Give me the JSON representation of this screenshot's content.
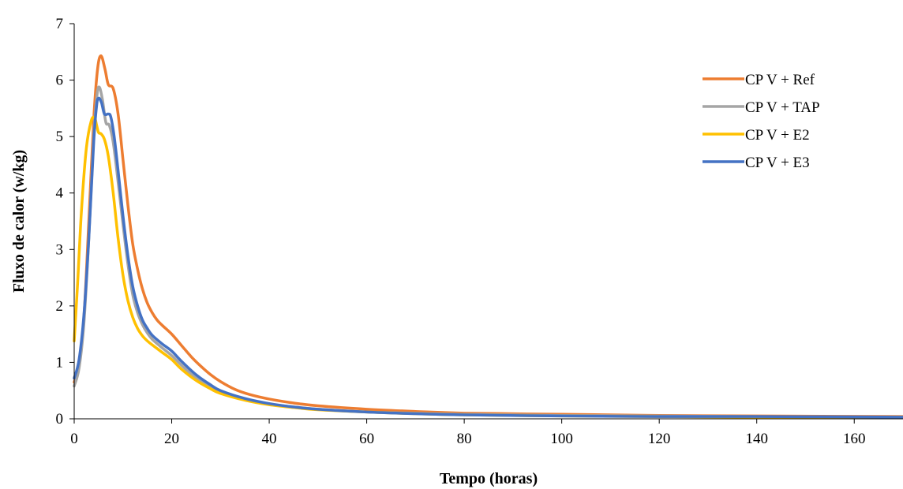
{
  "chart_data": {
    "type": "line",
    "title": "",
    "xlabel": "Tempo (horas)",
    "ylabel": "Fluxo de calor  (w/kg)",
    "xlim": [
      0,
      170
    ],
    "ylim": [
      0,
      7
    ],
    "x_ticks": [
      0,
      20,
      40,
      60,
      80,
      100,
      120,
      140,
      160
    ],
    "y_ticks": [
      0,
      1,
      2,
      3,
      4,
      5,
      6,
      7
    ],
    "grid": false,
    "legend_position": "top-right",
    "series": [
      {
        "name": "CP V + Ref",
        "color": "#ED7D31",
        "x": [
          0,
          1,
          2,
          3,
          4,
          4.8,
          5.5,
          6.3,
          7,
          8,
          9,
          10,
          11,
          12,
          13,
          14,
          15,
          16,
          17,
          18,
          20,
          22,
          24,
          26,
          28,
          30,
          33,
          36,
          40,
          45,
          50,
          60,
          70,
          80,
          100,
          120,
          140,
          170
        ],
        "y": [
          0.65,
          0.95,
          1.8,
          3.5,
          5.3,
          6.2,
          6.43,
          6.2,
          5.92,
          5.85,
          5.4,
          4.6,
          3.8,
          3.1,
          2.65,
          2.3,
          2.05,
          1.88,
          1.75,
          1.66,
          1.5,
          1.3,
          1.1,
          0.93,
          0.78,
          0.66,
          0.52,
          0.43,
          0.35,
          0.28,
          0.23,
          0.17,
          0.13,
          0.1,
          0.08,
          0.06,
          0.05,
          0.04
        ]
      },
      {
        "name": "CP V + TAP",
        "color": "#A5A5A5",
        "x": [
          0,
          1,
          2,
          3,
          4,
          4.7,
          5.2,
          5.8,
          6.5,
          7.2,
          8,
          9,
          10,
          11,
          12,
          13,
          14,
          15,
          16,
          18,
          20,
          22,
          25,
          28,
          30,
          35,
          40,
          45,
          50,
          60,
          70,
          80,
          100,
          120,
          140,
          170
        ],
        "y": [
          0.58,
          0.9,
          1.7,
          3.2,
          5.0,
          5.75,
          5.87,
          5.65,
          5.25,
          5.2,
          4.9,
          4.2,
          3.45,
          2.75,
          2.2,
          1.88,
          1.67,
          1.52,
          1.41,
          1.26,
          1.12,
          0.95,
          0.72,
          0.56,
          0.47,
          0.34,
          0.26,
          0.21,
          0.17,
          0.12,
          0.1,
          0.08,
          0.06,
          0.05,
          0.04,
          0.03
        ]
      },
      {
        "name": "CP V + E2",
        "color": "#FFC000",
        "x": [
          0,
          0.7,
          1.5,
          2.5,
          3.5,
          4.2,
          4.6,
          5.0,
          5.5,
          6.2,
          7,
          8,
          9,
          10,
          11,
          12,
          13,
          14,
          15,
          16,
          18,
          20,
          22,
          25,
          28,
          30,
          35,
          40,
          45,
          50,
          60,
          70,
          80,
          100,
          120,
          140,
          170
        ],
        "y": [
          1.38,
          2.4,
          3.7,
          4.8,
          5.28,
          5.33,
          5.2,
          5.07,
          5.05,
          4.95,
          4.65,
          4.0,
          3.2,
          2.55,
          2.1,
          1.8,
          1.6,
          1.47,
          1.38,
          1.31,
          1.18,
          1.05,
          0.88,
          0.68,
          0.53,
          0.45,
          0.33,
          0.25,
          0.2,
          0.16,
          0.12,
          0.09,
          0.07,
          0.05,
          0.04,
          0.03,
          0.03
        ]
      },
      {
        "name": "CP V + E3",
        "color": "#4472C4",
        "x": [
          0,
          1,
          2,
          3,
          4,
          4.6,
          5.0,
          5.6,
          6.2,
          7,
          7.5,
          8.2,
          9,
          10,
          11,
          12,
          13,
          14,
          15,
          16,
          18,
          20,
          22,
          25,
          28,
          30,
          35,
          40,
          45,
          50,
          60,
          70,
          80,
          100,
          120,
          140,
          170
        ],
        "y": [
          0.72,
          1.05,
          1.85,
          3.2,
          4.9,
          5.55,
          5.68,
          5.6,
          5.4,
          5.4,
          5.35,
          5.0,
          4.4,
          3.6,
          2.9,
          2.35,
          2.0,
          1.75,
          1.6,
          1.48,
          1.33,
          1.2,
          1.02,
          0.78,
          0.6,
          0.5,
          0.36,
          0.27,
          0.21,
          0.17,
          0.12,
          0.09,
          0.07,
          0.05,
          0.04,
          0.04,
          0.03
        ]
      }
    ]
  }
}
